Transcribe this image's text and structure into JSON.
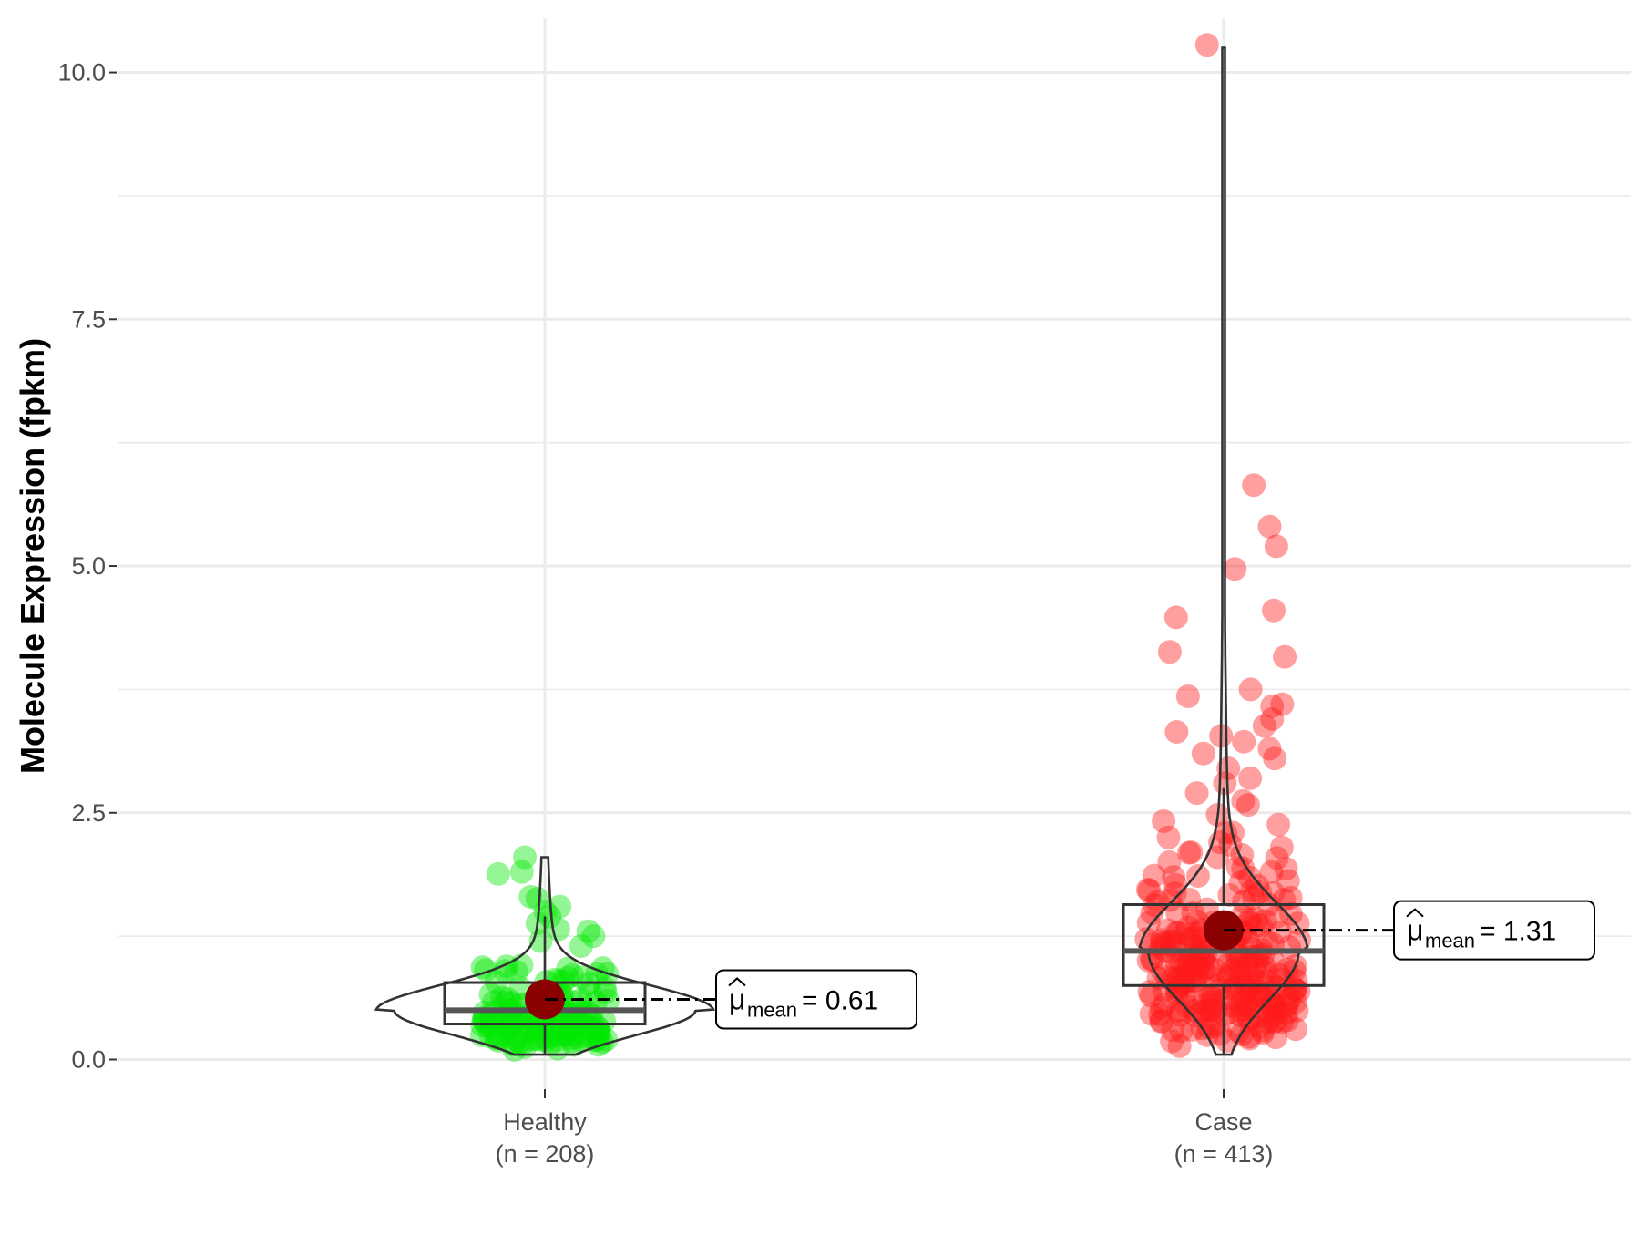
{
  "chart_data": {
    "type": "violin",
    "title": "",
    "xlabel": "",
    "ylabel": "Molecule Expression (fpkm)",
    "ylim": [
      -0.3,
      10.55
    ],
    "y_ticks": [
      0.0,
      2.5,
      5.0,
      7.5,
      10.0
    ],
    "y_tick_labels": [
      "0.0",
      "2.5",
      "5.0",
      "7.5",
      "10.0"
    ],
    "grid": true,
    "legend": "none",
    "categories": [
      "Healthy",
      "Case"
    ],
    "groups": [
      {
        "name": "Healthy",
        "n_label": "(n = 208)",
        "color": "#00e600",
        "mean": 0.61,
        "mean_label": "= 0.61",
        "box": {
          "q1": 0.36,
          "median": 0.5,
          "q3": 0.78,
          "whisker_low": 0.05,
          "whisker_high": 1.45
        },
        "violin_min": 0.05,
        "violin_max": 2.05,
        "outliers": [
          2.05,
          1.9,
          1.88,
          1.65,
          1.63,
          1.55,
          1.5,
          1.45,
          1.38,
          1.32,
          1.3,
          1.25,
          1.2,
          1.15
        ]
      },
      {
        "name": "Case",
        "n_label": "(n = 413)",
        "color": "#ff1a1a",
        "mean": 1.31,
        "mean_label": "= 1.31",
        "box": {
          "q1": 0.75,
          "median": 1.1,
          "q3": 1.57,
          "whisker_low": 0.05,
          "whisker_high": 2.75
        },
        "violin_min": 0.05,
        "violin_max": 10.25,
        "outliers": [
          10.28,
          5.82,
          5.4,
          5.2,
          4.97,
          4.55,
          4.48,
          4.13,
          4.08,
          3.75,
          3.68,
          3.6,
          3.58,
          3.45,
          3.38,
          3.32,
          3.28,
          3.22,
          3.15,
          3.1,
          3.05,
          2.95,
          2.85,
          2.8,
          2.7,
          2.62,
          2.58,
          2.48,
          2.38,
          2.3,
          2.25,
          2.2,
          2.15,
          2.1,
          2.05,
          2.0,
          1.95,
          1.9,
          1.85
        ]
      }
    ],
    "mean_symbol": "μ",
    "mean_subscript": "mean",
    "colors": {
      "grid": "#ebebeb",
      "mean_point": "#8b0000",
      "outline": "#333333"
    }
  }
}
